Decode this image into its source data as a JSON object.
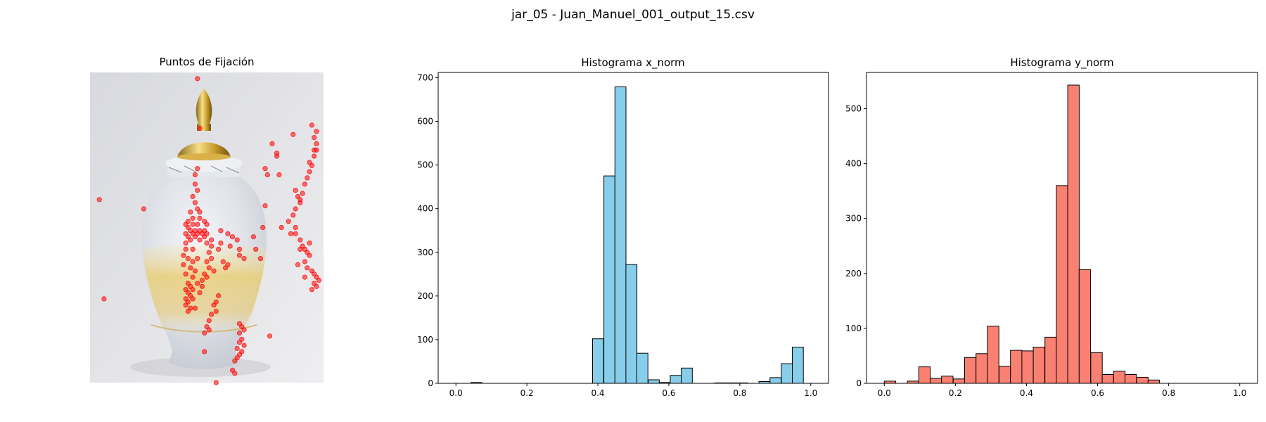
{
  "suptitle": "jar_05 - Juan_Manuel_001_output_15.csv",
  "chart_data": [
    {
      "type": "scatter",
      "title": "Puntos de Fijación",
      "xlabel": "",
      "ylabel": "",
      "background": "photo of a white and gold ginger jar with gold lid",
      "marker_color": "#ff0000",
      "xlim": [
        0,
        1
      ],
      "ylim": [
        0,
        1
      ],
      "points": [
        [
          0.46,
          0.02
        ],
        [
          0.47,
          0.18
        ],
        [
          0.46,
          0.31
        ],
        [
          0.45,
          0.33
        ],
        [
          0.45,
          0.36
        ],
        [
          0.46,
          0.38
        ],
        [
          0.44,
          0.4
        ],
        [
          0.45,
          0.42
        ],
        [
          0.46,
          0.44
        ],
        [
          0.47,
          0.45
        ],
        [
          0.43,
          0.45
        ],
        [
          0.44,
          0.47
        ],
        [
          0.47,
          0.47
        ],
        [
          0.42,
          0.48
        ],
        [
          0.49,
          0.48
        ],
        [
          0.41,
          0.49
        ],
        [
          0.44,
          0.49
        ],
        [
          0.46,
          0.49
        ],
        [
          0.5,
          0.49
        ],
        [
          0.42,
          0.5
        ],
        [
          0.43,
          0.51
        ],
        [
          0.45,
          0.51
        ],
        [
          0.47,
          0.51
        ],
        [
          0.49,
          0.51
        ],
        [
          0.41,
          0.52
        ],
        [
          0.44,
          0.52
        ],
        [
          0.46,
          0.52
        ],
        [
          0.48,
          0.52
        ],
        [
          0.5,
          0.52
        ],
        [
          0.42,
          0.53
        ],
        [
          0.45,
          0.53
        ],
        [
          0.49,
          0.53
        ],
        [
          0.43,
          0.54
        ],
        [
          0.47,
          0.54
        ],
        [
          0.52,
          0.54
        ],
        [
          0.41,
          0.55
        ],
        [
          0.5,
          0.55
        ],
        [
          0.52,
          0.56
        ],
        [
          0.41,
          0.57
        ],
        [
          0.44,
          0.57
        ],
        [
          0.55,
          0.57
        ],
        [
          0.56,
          0.51
        ],
        [
          0.59,
          0.52
        ],
        [
          0.61,
          0.53
        ],
        [
          0.56,
          0.55
        ],
        [
          0.6,
          0.56
        ],
        [
          0.63,
          0.54
        ],
        [
          0.64,
          0.57
        ],
        [
          0.7,
          0.53
        ],
        [
          0.71,
          0.57
        ],
        [
          0.4,
          0.59
        ],
        [
          0.42,
          0.6
        ],
        [
          0.44,
          0.61
        ],
        [
          0.46,
          0.6
        ],
        [
          0.4,
          0.62
        ],
        [
          0.43,
          0.63
        ],
        [
          0.45,
          0.64
        ],
        [
          0.41,
          0.65
        ],
        [
          0.44,
          0.66
        ],
        [
          0.51,
          0.58
        ],
        [
          0.52,
          0.6
        ],
        [
          0.5,
          0.61
        ],
        [
          0.51,
          0.63
        ],
        [
          0.49,
          0.65
        ],
        [
          0.53,
          0.64
        ],
        [
          0.57,
          0.61
        ],
        [
          0.58,
          0.63
        ],
        [
          0.59,
          0.62
        ],
        [
          0.64,
          0.59
        ],
        [
          0.66,
          0.6
        ],
        [
          0.73,
          0.6
        ],
        [
          0.48,
          0.67
        ],
        [
          0.42,
          0.68
        ],
        [
          0.43,
          0.69
        ],
        [
          0.41,
          0.7
        ],
        [
          0.44,
          0.7
        ],
        [
          0.42,
          0.71
        ],
        [
          0.43,
          0.72
        ],
        [
          0.41,
          0.73
        ],
        [
          0.42,
          0.74
        ],
        [
          0.44,
          0.73
        ],
        [
          0.41,
          0.75
        ],
        [
          0.43,
          0.76
        ],
        [
          0.42,
          0.77
        ],
        [
          0.45,
          0.76
        ],
        [
          0.46,
          0.68
        ],
        [
          0.48,
          0.69
        ],
        [
          0.47,
          0.71
        ],
        [
          0.5,
          0.66
        ],
        [
          0.55,
          0.72
        ],
        [
          0.54,
          0.74
        ],
        [
          0.53,
          0.75
        ],
        [
          0.54,
          0.77
        ],
        [
          0.52,
          0.78
        ],
        [
          0.51,
          0.8
        ],
        [
          0.5,
          0.82
        ],
        [
          0.49,
          0.84
        ],
        [
          0.51,
          0.83
        ],
        [
          0.49,
          0.9
        ],
        [
          0.64,
          0.81
        ],
        [
          0.65,
          0.82
        ],
        [
          0.66,
          0.83
        ],
        [
          0.64,
          0.84
        ],
        [
          0.65,
          0.86
        ],
        [
          0.64,
          0.87
        ],
        [
          0.66,
          0.88
        ],
        [
          0.63,
          0.89
        ],
        [
          0.65,
          0.9
        ],
        [
          0.64,
          0.91
        ],
        [
          0.63,
          0.92
        ],
        [
          0.62,
          0.93
        ],
        [
          0.61,
          0.96
        ],
        [
          0.62,
          0.97
        ],
        [
          0.54,
          1.0
        ],
        [
          0.76,
          0.33
        ],
        [
          0.81,
          0.33
        ],
        [
          0.75,
          0.43
        ],
        [
          0.82,
          0.5
        ],
        [
          0.85,
          0.48
        ],
        [
          0.87,
          0.46
        ],
        [
          0.88,
          0.44
        ],
        [
          0.9,
          0.42
        ],
        [
          0.89,
          0.4
        ],
        [
          0.88,
          0.38
        ],
        [
          0.92,
          0.36
        ],
        [
          0.93,
          0.34
        ],
        [
          0.94,
          0.32
        ],
        [
          0.95,
          0.3
        ],
        [
          0.96,
          0.27
        ],
        [
          0.97,
          0.25
        ],
        [
          0.97,
          0.23
        ],
        [
          0.96,
          0.21
        ],
        [
          0.97,
          0.19
        ],
        [
          0.95,
          0.17
        ],
        [
          0.96,
          0.25
        ],
        [
          0.94,
          0.29
        ],
        [
          0.91,
          0.39
        ],
        [
          0.9,
          0.41
        ],
        [
          0.87,
          0.2
        ],
        [
          0.8,
          0.26
        ],
        [
          0.75,
          0.31
        ],
        [
          0.78,
          0.23
        ],
        [
          0.88,
          0.5
        ],
        [
          0.88,
          0.52
        ],
        [
          0.9,
          0.54
        ],
        [
          0.91,
          0.56
        ],
        [
          0.92,
          0.57
        ],
        [
          0.93,
          0.58
        ],
        [
          0.94,
          0.59
        ],
        [
          0.92,
          0.61
        ],
        [
          0.93,
          0.63
        ],
        [
          0.95,
          0.64
        ],
        [
          0.96,
          0.65
        ],
        [
          0.97,
          0.66
        ],
        [
          0.98,
          0.67
        ],
        [
          0.96,
          0.68
        ],
        [
          0.97,
          0.69
        ],
        [
          0.95,
          0.7
        ],
        [
          0.92,
          0.66
        ],
        [
          0.94,
          0.55
        ],
        [
          0.89,
          0.62
        ],
        [
          0.9,
          0.57
        ],
        [
          0.04,
          0.41
        ],
        [
          0.06,
          0.73
        ],
        [
          0.23,
          0.44
        ],
        [
          0.77,
          0.85
        ],
        [
          0.74,
          0.5
        ],
        [
          0.8,
          0.27
        ],
        [
          0.86,
          0.52
        ]
      ]
    },
    {
      "type": "bar",
      "title": "Histograma x_norm",
      "xlabel": "",
      "ylabel": "",
      "color": "#87ceeb",
      "edgecolor": "#000000",
      "xlim": [
        0,
        1
      ],
      "ylim": [
        0,
        700
      ],
      "xticks": [
        "0.0",
        "0.2",
        "0.4",
        "0.6",
        "0.8",
        "1.0"
      ],
      "yticks": [
        "0",
        "100",
        "200",
        "300",
        "400",
        "500",
        "600",
        "700"
      ],
      "bin_width": 0.0312,
      "bin_left_edges": [
        0.042,
        0.073,
        0.104,
        0.136,
        0.167,
        0.198,
        0.229,
        0.26,
        0.292,
        0.323,
        0.354,
        0.385,
        0.417,
        0.448,
        0.479,
        0.51,
        0.542,
        0.573,
        0.604,
        0.635,
        0.667,
        0.698,
        0.729,
        0.76,
        0.792,
        0.823,
        0.854,
        0.885,
        0.917,
        0.948
      ],
      "values": [
        2,
        0,
        0,
        0,
        0,
        0,
        0,
        0,
        0,
        0,
        0,
        102,
        475,
        679,
        272,
        69,
        8,
        2,
        18,
        35,
        0,
        0,
        1,
        1,
        1,
        0,
        4,
        13,
        45,
        83
      ]
    },
    {
      "type": "bar",
      "title": "Histograma y_norm",
      "xlabel": "",
      "ylabel": "",
      "color": "#fa8072",
      "edgecolor": "#000000",
      "xlim": [
        0,
        1
      ],
      "ylim": [
        0,
        500
      ],
      "xticks": [
        "0.0",
        "0.2",
        "0.4",
        "0.6",
        "0.8",
        "1.0"
      ],
      "yticks": [
        "0",
        "100",
        "200",
        "300",
        "400",
        "500"
      ],
      "bin_width": 0.0323,
      "bin_left_edges": [
        0.0,
        0.032,
        0.065,
        0.097,
        0.129,
        0.161,
        0.194,
        0.226,
        0.258,
        0.29,
        0.323,
        0.355,
        0.387,
        0.419,
        0.452,
        0.484,
        0.516,
        0.548,
        0.581,
        0.613,
        0.645,
        0.677,
        0.71,
        0.742,
        0.774,
        0.806,
        0.839,
        0.871,
        0.903,
        0.935
      ],
      "values": [
        4,
        0,
        4,
        30,
        9,
        13,
        8,
        47,
        54,
        104,
        31,
        60,
        59,
        66,
        84,
        360,
        543,
        207,
        56,
        16,
        22,
        16,
        11,
        6,
        0,
        0,
        0,
        0,
        0,
        0
      ]
    }
  ]
}
